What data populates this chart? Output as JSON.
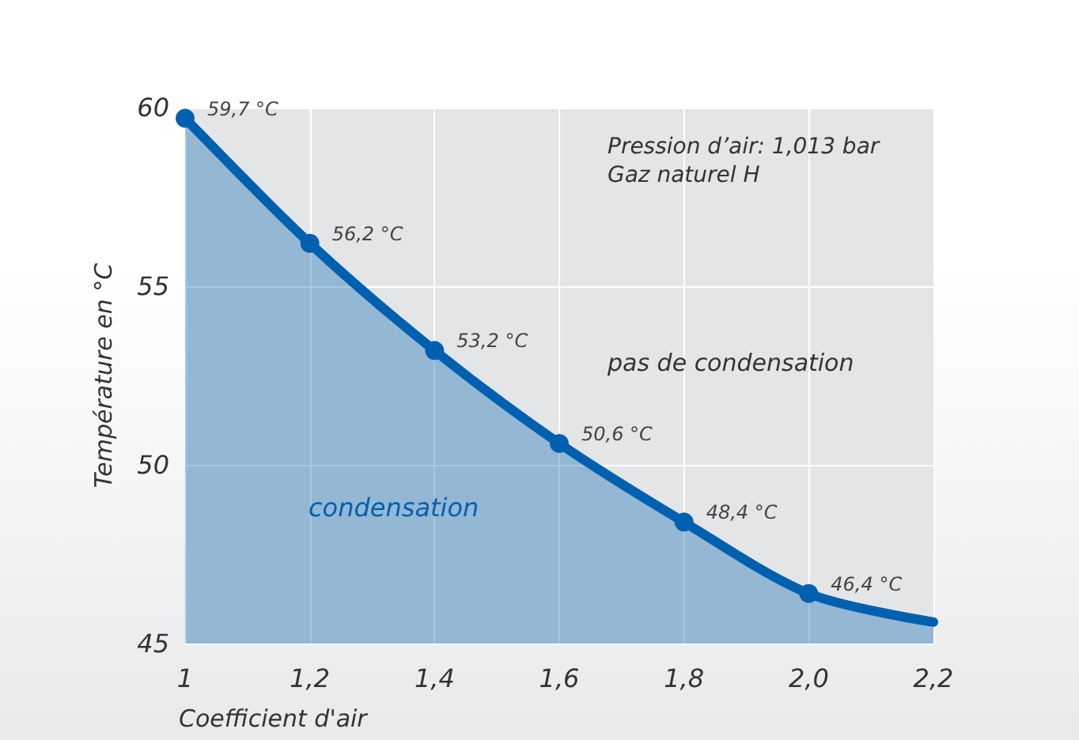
{
  "chart_data": {
    "type": "area",
    "xlabel": "Coefficient d'air",
    "ylabel": "Température en °C",
    "x": [
      1,
      1.2,
      1.4,
      1.6,
      1.8,
      2.0,
      2.2
    ],
    "series": [
      {
        "color": "#0060b0",
        "values": [
          59.7,
          56.2,
          53.2,
          50.6,
          48.4,
          46.4,
          45.6
        ],
        "value_labels": [
          "59,7 °C",
          "56,2 °C",
          "53,2 °C",
          "50,6 °C",
          "48,4 °C",
          "46,4 °C",
          null
        ]
      }
    ],
    "xlim": [
      1,
      2.2
    ],
    "ylim": [
      45,
      60
    ],
    "xticks": [
      {
        "value": 1,
        "label": "1"
      },
      {
        "value": 1.2,
        "label": "1,2"
      },
      {
        "value": 1.4,
        "label": "1,4"
      },
      {
        "value": 1.6,
        "label": "1,6"
      },
      {
        "value": 1.8,
        "label": "1,8"
      },
      {
        "value": 2.0,
        "label": "2,0"
      },
      {
        "value": 2.2,
        "label": "2,2"
      }
    ],
    "yticks": [
      45,
      50,
      55,
      60
    ],
    "grid": true,
    "marker": "circle",
    "line_style": "solid",
    "annotations": [
      "Pression d’air: 1,013 bar",
      "Gaz naturel H",
      "pas de condensation",
      "condensation"
    ]
  }
}
